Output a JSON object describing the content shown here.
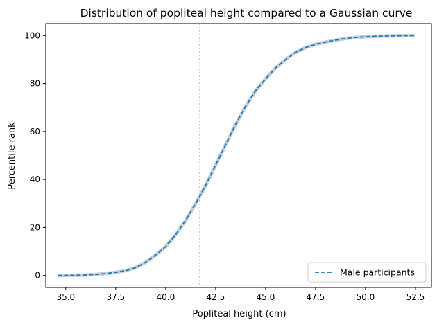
{
  "chart_data": {
    "type": "line",
    "title": "Distribution of popliteal height compared to a Gaussian curve",
    "xlabel": "Popliteal height (cm)",
    "ylabel": "Percentile rank",
    "xlim": [
      34.0,
      53.3
    ],
    "ylim": [
      -5,
      105
    ],
    "xticks": [
      "35.0",
      "37.5",
      "40.0",
      "42.5",
      "45.0",
      "47.5",
      "50.0",
      "52.5"
    ],
    "yticks": [
      "0",
      "20",
      "40",
      "60",
      "80",
      "100"
    ],
    "grid": false,
    "legend": {
      "placement": "lower-right",
      "entries": [
        "Male participants"
      ]
    },
    "reference_line": {
      "x": 41.7,
      "style": "dotted",
      "color": "#d3d3d3"
    },
    "colors": {
      "series": "#1f77b4",
      "band": "#b8c4cf",
      "reference": "#cccccc"
    },
    "series": [
      {
        "name": "Male participants",
        "style": "dashed",
        "x": [
          34.6,
          35.0,
          35.5,
          36.0,
          36.5,
          37.0,
          37.5,
          38.0,
          38.5,
          39.0,
          39.5,
          40.0,
          40.5,
          41.0,
          41.5,
          42.0,
          42.5,
          43.0,
          43.5,
          44.0,
          44.5,
          45.0,
          45.5,
          46.0,
          46.5,
          47.0,
          47.5,
          48.0,
          48.5,
          49.0,
          49.5,
          50.0,
          50.5,
          51.0,
          51.5,
          52.0,
          52.5
        ],
        "y": [
          0,
          0,
          0.1,
          0.2,
          0.4,
          0.8,
          1.3,
          2.0,
          3.3,
          5.5,
          8.5,
          12.0,
          17.0,
          23.0,
          30.0,
          37.5,
          46.0,
          54.5,
          63.0,
          70.5,
          77.0,
          82.0,
          86.5,
          90.0,
          93.0,
          95.0,
          96.3,
          97.3,
          98.1,
          98.8,
          99.2,
          99.5,
          99.7,
          99.8,
          99.9,
          99.95,
          100
        ]
      }
    ]
  }
}
